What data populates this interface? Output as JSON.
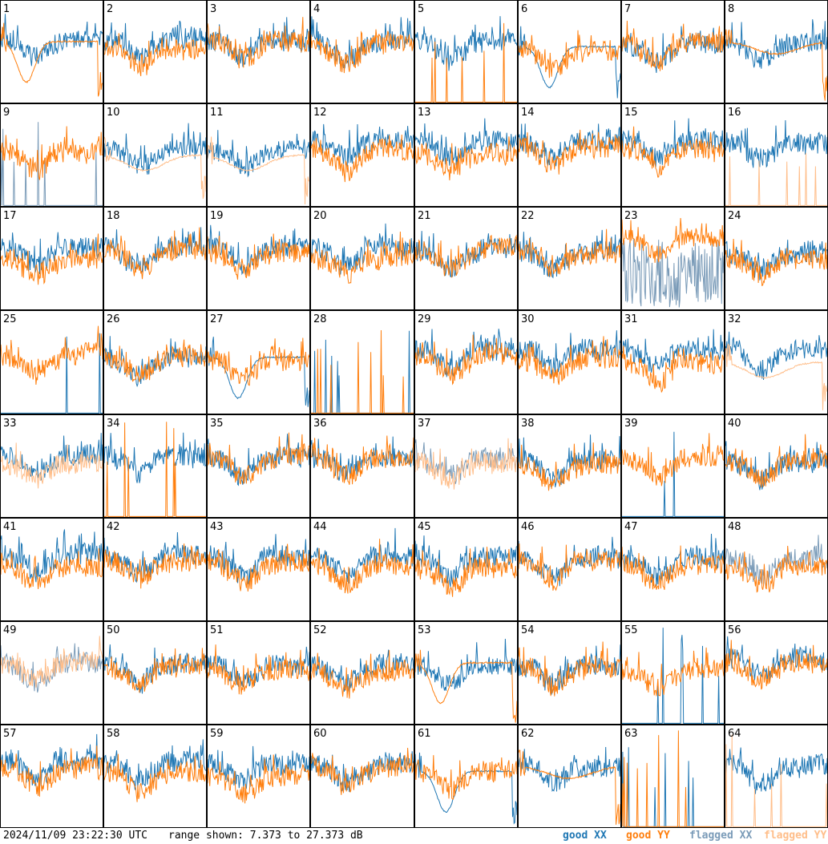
{
  "footer": {
    "timestamp": "2024/11/09 23:22:30 UTC",
    "range_text": "range shown: 7.373 to 27.373 dB"
  },
  "legend": [
    {
      "label": "good XX",
      "color": "#1f77b4"
    },
    {
      "label": "good YY",
      "color": "#ff7f0e"
    },
    {
      "label": "flagged XX",
      "color": "#7a9bb8"
    },
    {
      "label": "flagged YY",
      "color": "#ffbe8a"
    }
  ],
  "chart_data": {
    "type": "line",
    "title": "",
    "ylim": [
      7.373,
      27.373
    ],
    "yunit": "dB",
    "rows": 8,
    "cols": 8,
    "panels": [
      {
        "id": "1",
        "xx": "good",
        "yy": "good",
        "shape": "anomaly_yy_dip"
      },
      {
        "id": "2",
        "xx": "good",
        "yy": "good",
        "shape": "normal"
      },
      {
        "id": "3",
        "xx": "good",
        "yy": "good",
        "shape": "normal"
      },
      {
        "id": "4",
        "xx": "good",
        "yy": "good",
        "shape": "normal"
      },
      {
        "id": "5",
        "xx": "good",
        "yy": "good",
        "shape": "yy_spikes"
      },
      {
        "id": "6",
        "xx": "good",
        "yy": "good",
        "shape": "anomaly_xx_dip"
      },
      {
        "id": "7",
        "xx": "good",
        "yy": "good",
        "shape": "normal"
      },
      {
        "id": "8",
        "xx": "good",
        "yy": "good",
        "shape": "yy_smooth"
      },
      {
        "id": "9",
        "xx": "flagged",
        "yy": "good",
        "shape": "xx_spikes"
      },
      {
        "id": "10",
        "xx": "good",
        "yy": "flagged",
        "shape": "low_bowl"
      },
      {
        "id": "11",
        "xx": "good",
        "yy": "flagged",
        "shape": "low_bowl"
      },
      {
        "id": "12",
        "xx": "good",
        "yy": "good",
        "shape": "normal"
      },
      {
        "id": "13",
        "xx": "good",
        "yy": "good",
        "shape": "normal"
      },
      {
        "id": "14",
        "xx": "good",
        "yy": "good",
        "shape": "normal"
      },
      {
        "id": "15",
        "xx": "good",
        "yy": "good",
        "shape": "normal"
      },
      {
        "id": "16",
        "xx": "good",
        "yy": "flagged",
        "shape": "yy_spikes"
      },
      {
        "id": "17",
        "xx": "good",
        "yy": "good",
        "shape": "normal"
      },
      {
        "id": "18",
        "xx": "good",
        "yy": "good",
        "shape": "normal"
      },
      {
        "id": "19",
        "xx": "good",
        "yy": "good",
        "shape": "normal"
      },
      {
        "id": "20",
        "xx": "good",
        "yy": "good",
        "shape": "normal"
      },
      {
        "id": "21",
        "xx": "good",
        "yy": "good",
        "shape": "normal"
      },
      {
        "id": "22",
        "xx": "good",
        "yy": "good",
        "shape": "normal"
      },
      {
        "id": "23",
        "xx": "flagged",
        "yy": "good",
        "shape": "xx_noisy_low"
      },
      {
        "id": "24",
        "xx": "good",
        "yy": "good",
        "shape": "normal"
      },
      {
        "id": "25",
        "xx": "good",
        "yy": "good",
        "shape": "yy_only"
      },
      {
        "id": "26",
        "xx": "good",
        "yy": "good",
        "shape": "normal"
      },
      {
        "id": "27",
        "xx": "good",
        "yy": "good",
        "shape": "anomaly_xx_dip"
      },
      {
        "id": "28",
        "xx": "good",
        "yy": "good",
        "shape": "both_spikes"
      },
      {
        "id": "29",
        "xx": "good",
        "yy": "good",
        "shape": "normal"
      },
      {
        "id": "30",
        "xx": "good",
        "yy": "good",
        "shape": "normal"
      },
      {
        "id": "31",
        "xx": "good",
        "yy": "good",
        "shape": "normal"
      },
      {
        "id": "32",
        "xx": "good",
        "yy": "flagged",
        "shape": "low_bowl"
      },
      {
        "id": "33",
        "xx": "good",
        "yy": "flagged",
        "shape": "normal"
      },
      {
        "id": "34",
        "xx": "good",
        "yy": "good",
        "shape": "yy_spikes"
      },
      {
        "id": "35",
        "xx": "good",
        "yy": "good",
        "shape": "normal"
      },
      {
        "id": "36",
        "xx": "good",
        "yy": "good",
        "shape": "normal"
      },
      {
        "id": "37",
        "xx": "flagged",
        "yy": "flagged",
        "shape": "normal"
      },
      {
        "id": "38",
        "xx": "good",
        "yy": "good",
        "shape": "normal"
      },
      {
        "id": "39",
        "xx": "good",
        "yy": "good",
        "shape": "yy_only"
      },
      {
        "id": "40",
        "xx": "good",
        "yy": "good",
        "shape": "normal"
      },
      {
        "id": "41",
        "xx": "good",
        "yy": "good",
        "shape": "normal"
      },
      {
        "id": "42",
        "xx": "good",
        "yy": "good",
        "shape": "normal"
      },
      {
        "id": "43",
        "xx": "good",
        "yy": "good",
        "shape": "normal"
      },
      {
        "id": "44",
        "xx": "good",
        "yy": "good",
        "shape": "normal"
      },
      {
        "id": "45",
        "xx": "good",
        "yy": "good",
        "shape": "normal"
      },
      {
        "id": "46",
        "xx": "good",
        "yy": "good",
        "shape": "normal"
      },
      {
        "id": "47",
        "xx": "good",
        "yy": "good",
        "shape": "normal"
      },
      {
        "id": "48",
        "xx": "flagged",
        "yy": "good",
        "shape": "normal"
      },
      {
        "id": "49",
        "xx": "flagged",
        "yy": "flagged",
        "shape": "normal"
      },
      {
        "id": "50",
        "xx": "good",
        "yy": "good",
        "shape": "normal"
      },
      {
        "id": "51",
        "xx": "good",
        "yy": "good",
        "shape": "normal"
      },
      {
        "id": "52",
        "xx": "good",
        "yy": "good",
        "shape": "normal"
      },
      {
        "id": "53",
        "xx": "good",
        "yy": "good",
        "shape": "anomaly_yy_dip"
      },
      {
        "id": "54",
        "xx": "good",
        "yy": "good",
        "shape": "normal"
      },
      {
        "id": "55",
        "xx": "good",
        "yy": "good",
        "shape": "xx_spikes"
      },
      {
        "id": "56",
        "xx": "good",
        "yy": "good",
        "shape": "normal"
      },
      {
        "id": "57",
        "xx": "good",
        "yy": "good",
        "shape": "normal"
      },
      {
        "id": "58",
        "xx": "good",
        "yy": "good",
        "shape": "normal"
      },
      {
        "id": "59",
        "xx": "good",
        "yy": "good",
        "shape": "normal"
      },
      {
        "id": "60",
        "xx": "good",
        "yy": "good",
        "shape": "normal"
      },
      {
        "id": "61",
        "xx": "good",
        "yy": "good",
        "shape": "anomaly_xx_dip"
      },
      {
        "id": "62",
        "xx": "good",
        "yy": "good",
        "shape": "yy_smooth"
      },
      {
        "id": "63",
        "xx": "good",
        "yy": "good",
        "shape": "both_spikes"
      },
      {
        "id": "64",
        "xx": "good",
        "yy": "flagged",
        "shape": "yy_spikes"
      }
    ]
  }
}
